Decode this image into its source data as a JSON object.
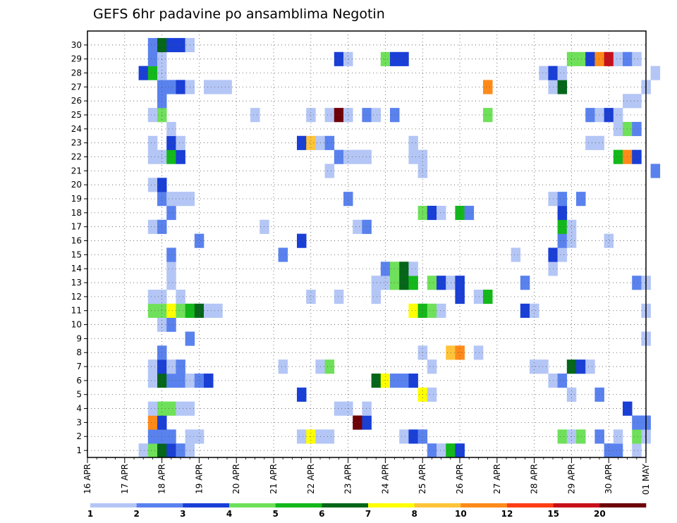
{
  "chart_data": {
    "type": "heatmap",
    "title": "GEFS 6hr padavine po ansamblima Negotin",
    "y_ticks": [
      "1",
      "2",
      "3",
      "4",
      "5",
      "6",
      "7",
      "8",
      "9",
      "10",
      "11",
      "12",
      "13",
      "14",
      "15",
      "16",
      "17",
      "18",
      "19",
      "20",
      "21",
      "22",
      "23",
      "24",
      "25",
      "26",
      "27",
      "28",
      "29",
      "30"
    ],
    "x_ticks": [
      "16 APR",
      "17 APR",
      "18 APR",
      "19 APR",
      "20 APR",
      "21 APR",
      "22 APR",
      "23 APR",
      "24 APR",
      "25 APR",
      "26 APR",
      "27 APR",
      "28 APR",
      "29 APR",
      "30 APR",
      "01 MAY"
    ],
    "x_steps_per_day": 4,
    "grid": true,
    "colorbar": {
      "boundary_labels": [
        "1",
        "2",
        "3",
        "4",
        "5",
        "6",
        "7",
        "8",
        "10",
        "12",
        "15",
        "20"
      ],
      "colors": [
        "#b4c6f5",
        "#5a82ee",
        "#1a3fd6",
        "#6fe05a",
        "#13b81a",
        "#05661a",
        "#ffff00",
        "#ffc43a",
        "#ff8a1a",
        "#ff3e14",
        "#c8101a",
        "#6e0008"
      ]
    },
    "cells": [
      {
        "m": 1,
        "t": 6,
        "c": 1
      },
      {
        "m": 1,
        "t": 7,
        "c": 4
      },
      {
        "m": 1,
        "t": 8,
        "c": 6
      },
      {
        "m": 1,
        "t": 9,
        "c": 3
      },
      {
        "m": 1,
        "t": 10,
        "c": 2
      },
      {
        "m": 1,
        "t": 11,
        "c": 1
      },
      {
        "m": 1,
        "t": 37,
        "c": 2
      },
      {
        "m": 1,
        "t": 38,
        "c": 1
      },
      {
        "m": 1,
        "t": 39,
        "c": 5
      },
      {
        "m": 1,
        "t": 40,
        "c": 3
      },
      {
        "m": 1,
        "t": 56,
        "c": 2
      },
      {
        "m": 1,
        "t": 57,
        "c": 2
      },
      {
        "m": 1,
        "t": 59,
        "c": 1
      },
      {
        "m": 2,
        "t": 7,
        "c": 2
      },
      {
        "m": 2,
        "t": 8,
        "c": 2
      },
      {
        "m": 2,
        "t": 9,
        "c": 2
      },
      {
        "m": 2,
        "t": 11,
        "c": 1
      },
      {
        "m": 2,
        "t": 12,
        "c": 1
      },
      {
        "m": 2,
        "t": 23,
        "c": 1
      },
      {
        "m": 2,
        "t": 24,
        "c": 7
      },
      {
        "m": 2,
        "t": 25,
        "c": 1
      },
      {
        "m": 2,
        "t": 26,
        "c": 1
      },
      {
        "m": 2,
        "t": 34,
        "c": 1
      },
      {
        "m": 2,
        "t": 35,
        "c": 3
      },
      {
        "m": 2,
        "t": 36,
        "c": 2
      },
      {
        "m": 2,
        "t": 51,
        "c": 4
      },
      {
        "m": 2,
        "t": 52,
        "c": 1
      },
      {
        "m": 2,
        "t": 53,
        "c": 4
      },
      {
        "m": 2,
        "t": 55,
        "c": 2
      },
      {
        "m": 2,
        "t": 57,
        "c": 1
      },
      {
        "m": 2,
        "t": 59,
        "c": 4
      },
      {
        "m": 2,
        "t": 60,
        "c": 1
      },
      {
        "m": 3,
        "t": 7,
        "c": 9
      },
      {
        "m": 3,
        "t": 8,
        "c": 3
      },
      {
        "m": 3,
        "t": 29,
        "c": 12
      },
      {
        "m": 3,
        "t": 30,
        "c": 3
      },
      {
        "m": 3,
        "t": 59,
        "c": 2
      },
      {
        "m": 3,
        "t": 60,
        "c": 2
      },
      {
        "m": 4,
        "t": 7,
        "c": 1
      },
      {
        "m": 4,
        "t": 8,
        "c": 4
      },
      {
        "m": 4,
        "t": 9,
        "c": 4
      },
      {
        "m": 4,
        "t": 10,
        "c": 1
      },
      {
        "m": 4,
        "t": 11,
        "c": 1
      },
      {
        "m": 4,
        "t": 27,
        "c": 1
      },
      {
        "m": 4,
        "t": 28,
        "c": 1
      },
      {
        "m": 4,
        "t": 30,
        "c": 1
      },
      {
        "m": 4,
        "t": 58,
        "c": 3
      },
      {
        "m": 5,
        "t": 23,
        "c": 3
      },
      {
        "m": 5,
        "t": 36,
        "c": 7
      },
      {
        "m": 5,
        "t": 37,
        "c": 1
      },
      {
        "m": 5,
        "t": 52,
        "c": 1
      },
      {
        "m": 5,
        "t": 55,
        "c": 2
      },
      {
        "m": 6,
        "t": 7,
        "c": 1
      },
      {
        "m": 6,
        "t": 8,
        "c": 6
      },
      {
        "m": 6,
        "t": 9,
        "c": 2
      },
      {
        "m": 6,
        "t": 10,
        "c": 2
      },
      {
        "m": 6,
        "t": 11,
        "c": 1
      },
      {
        "m": 6,
        "t": 12,
        "c": 2
      },
      {
        "m": 6,
        "t": 13,
        "c": 3
      },
      {
        "m": 6,
        "t": 31,
        "c": 6
      },
      {
        "m": 6,
        "t": 32,
        "c": 7
      },
      {
        "m": 6,
        "t": 33,
        "c": 2
      },
      {
        "m": 6,
        "t": 34,
        "c": 2
      },
      {
        "m": 6,
        "t": 35,
        "c": 3
      },
      {
        "m": 6,
        "t": 50,
        "c": 1
      },
      {
        "m": 6,
        "t": 51,
        "c": 2
      },
      {
        "m": 7,
        "t": 7,
        "c": 1
      },
      {
        "m": 7,
        "t": 8,
        "c": 3
      },
      {
        "m": 7,
        "t": 9,
        "c": 1
      },
      {
        "m": 7,
        "t": 10,
        "c": 2
      },
      {
        "m": 7,
        "t": 21,
        "c": 1
      },
      {
        "m": 7,
        "t": 25,
        "c": 1
      },
      {
        "m": 7,
        "t": 26,
        "c": 4
      },
      {
        "m": 7,
        "t": 37,
        "c": 1
      },
      {
        "m": 7,
        "t": 48,
        "c": 1
      },
      {
        "m": 7,
        "t": 49,
        "c": 1
      },
      {
        "m": 7,
        "t": 52,
        "c": 6
      },
      {
        "m": 7,
        "t": 53,
        "c": 3
      },
      {
        "m": 7,
        "t": 54,
        "c": 1
      },
      {
        "m": 8,
        "t": 8,
        "c": 2
      },
      {
        "m": 8,
        "t": 36,
        "c": 1
      },
      {
        "m": 8,
        "t": 39,
        "c": 8
      },
      {
        "m": 8,
        "t": 40,
        "c": 9
      },
      {
        "m": 8,
        "t": 42,
        "c": 1
      },
      {
        "m": 9,
        "t": 11,
        "c": 2
      },
      {
        "m": 9,
        "t": 60,
        "c": 1
      },
      {
        "m": 10,
        "t": 8,
        "c": 1
      },
      {
        "m": 10,
        "t": 9,
        "c": 2
      },
      {
        "m": 11,
        "t": 7,
        "c": 4
      },
      {
        "m": 11,
        "t": 8,
        "c": 4
      },
      {
        "m": 11,
        "t": 9,
        "c": 7
      },
      {
        "m": 11,
        "t": 10,
        "c": 4
      },
      {
        "m": 11,
        "t": 11,
        "c": 5
      },
      {
        "m": 11,
        "t": 12,
        "c": 6
      },
      {
        "m": 11,
        "t": 13,
        "c": 1
      },
      {
        "m": 11,
        "t": 14,
        "c": 1
      },
      {
        "m": 11,
        "t": 35,
        "c": 7
      },
      {
        "m": 11,
        "t": 36,
        "c": 5
      },
      {
        "m": 11,
        "t": 37,
        "c": 4
      },
      {
        "m": 11,
        "t": 38,
        "c": 1
      },
      {
        "m": 11,
        "t": 47,
        "c": 3
      },
      {
        "m": 11,
        "t": 48,
        "c": 1
      },
      {
        "m": 11,
        "t": 60,
        "c": 1
      },
      {
        "m": 12,
        "t": 7,
        "c": 1
      },
      {
        "m": 12,
        "t": 8,
        "c": 1
      },
      {
        "m": 12,
        "t": 10,
        "c": 1
      },
      {
        "m": 12,
        "t": 24,
        "c": 1
      },
      {
        "m": 12,
        "t": 27,
        "c": 1
      },
      {
        "m": 12,
        "t": 31,
        "c": 1
      },
      {
        "m": 12,
        "t": 40,
        "c": 3
      },
      {
        "m": 12,
        "t": 42,
        "c": 1
      },
      {
        "m": 12,
        "t": 43,
        "c": 5
      },
      {
        "m": 13,
        "t": 9,
        "c": 1
      },
      {
        "m": 13,
        "t": 31,
        "c": 1
      },
      {
        "m": 13,
        "t": 32,
        "c": 1
      },
      {
        "m": 13,
        "t": 33,
        "c": 4
      },
      {
        "m": 13,
        "t": 34,
        "c": 6
      },
      {
        "m": 13,
        "t": 35,
        "c": 5
      },
      {
        "m": 13,
        "t": 37,
        "c": 4
      },
      {
        "m": 13,
        "t": 38,
        "c": 3
      },
      {
        "m": 13,
        "t": 39,
        "c": 1
      },
      {
        "m": 13,
        "t": 40,
        "c": 3
      },
      {
        "m": 13,
        "t": 47,
        "c": 2
      },
      {
        "m": 13,
        "t": 59,
        "c": 2
      },
      {
        "m": 13,
        "t": 60,
        "c": 1
      },
      {
        "m": 14,
        "t": 9,
        "c": 1
      },
      {
        "m": 14,
        "t": 32,
        "c": 2
      },
      {
        "m": 14,
        "t": 33,
        "c": 4
      },
      {
        "m": 14,
        "t": 34,
        "c": 6
      },
      {
        "m": 14,
        "t": 35,
        "c": 1
      },
      {
        "m": 14,
        "t": 50,
        "c": 1
      },
      {
        "m": 15,
        "t": 9,
        "c": 2
      },
      {
        "m": 15,
        "t": 21,
        "c": 2
      },
      {
        "m": 15,
        "t": 46,
        "c": 1
      },
      {
        "m": 15,
        "t": 50,
        "c": 3
      },
      {
        "m": 15,
        "t": 51,
        "c": 1
      },
      {
        "m": 16,
        "t": 12,
        "c": 2
      },
      {
        "m": 16,
        "t": 23,
        "c": 3
      },
      {
        "m": 16,
        "t": 51,
        "c": 2
      },
      {
        "m": 16,
        "t": 52,
        "c": 1
      },
      {
        "m": 16,
        "t": 56,
        "c": 1
      },
      {
        "m": 17,
        "t": 7,
        "c": 1
      },
      {
        "m": 17,
        "t": 8,
        "c": 2
      },
      {
        "m": 17,
        "t": 19,
        "c": 1
      },
      {
        "m": 17,
        "t": 29,
        "c": 1
      },
      {
        "m": 17,
        "t": 30,
        "c": 2
      },
      {
        "m": 17,
        "t": 51,
        "c": 5
      },
      {
        "m": 17,
        "t": 52,
        "c": 1
      },
      {
        "m": 18,
        "t": 9,
        "c": 2
      },
      {
        "m": 18,
        "t": 36,
        "c": 4
      },
      {
        "m": 18,
        "t": 37,
        "c": 3
      },
      {
        "m": 18,
        "t": 38,
        "c": 1
      },
      {
        "m": 18,
        "t": 40,
        "c": 5
      },
      {
        "m": 18,
        "t": 41,
        "c": 2
      },
      {
        "m": 18,
        "t": 51,
        "c": 3
      },
      {
        "m": 19,
        "t": 8,
        "c": 2
      },
      {
        "m": 19,
        "t": 9,
        "c": 1
      },
      {
        "m": 19,
        "t": 10,
        "c": 1
      },
      {
        "m": 19,
        "t": 11,
        "c": 1
      },
      {
        "m": 19,
        "t": 28,
        "c": 2
      },
      {
        "m": 19,
        "t": 50,
        "c": 1
      },
      {
        "m": 19,
        "t": 51,
        "c": 2
      },
      {
        "m": 19,
        "t": 53,
        "c": 2
      },
      {
        "m": 20,
        "t": 7,
        "c": 1
      },
      {
        "m": 20,
        "t": 8,
        "c": 3
      },
      {
        "m": 21,
        "t": 26,
        "c": 1
      },
      {
        "m": 21,
        "t": 36,
        "c": 1
      },
      {
        "m": 21,
        "t": 61,
        "c": 2
      },
      {
        "m": 22,
        "t": 7,
        "c": 1
      },
      {
        "m": 22,
        "t": 8,
        "c": 1
      },
      {
        "m": 22,
        "t": 9,
        "c": 5
      },
      {
        "m": 22,
        "t": 10,
        "c": 3
      },
      {
        "m": 22,
        "t": 27,
        "c": 2
      },
      {
        "m": 22,
        "t": 28,
        "c": 1
      },
      {
        "m": 22,
        "t": 29,
        "c": 1
      },
      {
        "m": 22,
        "t": 30,
        "c": 1
      },
      {
        "m": 22,
        "t": 35,
        "c": 1
      },
      {
        "m": 22,
        "t": 36,
        "c": 1
      },
      {
        "m": 22,
        "t": 57,
        "c": 5
      },
      {
        "m": 22,
        "t": 58,
        "c": 9
      },
      {
        "m": 22,
        "t": 59,
        "c": 3
      },
      {
        "m": 23,
        "t": 7,
        "c": 1
      },
      {
        "m": 23,
        "t": 9,
        "c": 3
      },
      {
        "m": 23,
        "t": 10,
        "c": 1
      },
      {
        "m": 23,
        "t": 23,
        "c": 3
      },
      {
        "m": 23,
        "t": 24,
        "c": 8
      },
      {
        "m": 23,
        "t": 25,
        "c": 1
      },
      {
        "m": 23,
        "t": 26,
        "c": 2
      },
      {
        "m": 23,
        "t": 35,
        "c": 1
      },
      {
        "m": 23,
        "t": 54,
        "c": 1
      },
      {
        "m": 23,
        "t": 55,
        "c": 1
      },
      {
        "m": 24,
        "t": 9,
        "c": 1
      },
      {
        "m": 24,
        "t": 57,
        "c": 1
      },
      {
        "m": 24,
        "t": 58,
        "c": 4
      },
      {
        "m": 24,
        "t": 59,
        "c": 2
      },
      {
        "m": 25,
        "t": 7,
        "c": 1
      },
      {
        "m": 25,
        "t": 8,
        "c": 4
      },
      {
        "m": 25,
        "t": 18,
        "c": 1
      },
      {
        "m": 25,
        "t": 24,
        "c": 1
      },
      {
        "m": 25,
        "t": 26,
        "c": 1
      },
      {
        "m": 25,
        "t": 27,
        "c": 12
      },
      {
        "m": 25,
        "t": 28,
        "c": 1
      },
      {
        "m": 25,
        "t": 30,
        "c": 2
      },
      {
        "m": 25,
        "t": 31,
        "c": 1
      },
      {
        "m": 25,
        "t": 33,
        "c": 2
      },
      {
        "m": 25,
        "t": 43,
        "c": 4
      },
      {
        "m": 25,
        "t": 54,
        "c": 2
      },
      {
        "m": 25,
        "t": 55,
        "c": 1
      },
      {
        "m": 25,
        "t": 56,
        "c": 3
      },
      {
        "m": 25,
        "t": 57,
        "c": 1
      },
      {
        "m": 26,
        "t": 8,
        "c": 2
      },
      {
        "m": 26,
        "t": 58,
        "c": 1
      },
      {
        "m": 26,
        "t": 59,
        "c": 1
      },
      {
        "m": 27,
        "t": 8,
        "c": 2
      },
      {
        "m": 27,
        "t": 9,
        "c": 2
      },
      {
        "m": 27,
        "t": 10,
        "c": 3
      },
      {
        "m": 27,
        "t": 11,
        "c": 1
      },
      {
        "m": 27,
        "t": 13,
        "c": 1
      },
      {
        "m": 27,
        "t": 14,
        "c": 1
      },
      {
        "m": 27,
        "t": 15,
        "c": 1
      },
      {
        "m": 27,
        "t": 43,
        "c": 9
      },
      {
        "m": 27,
        "t": 50,
        "c": 1
      },
      {
        "m": 27,
        "t": 51,
        "c": 6
      },
      {
        "m": 27,
        "t": 60,
        "c": 1
      },
      {
        "m": 28,
        "t": 6,
        "c": 3
      },
      {
        "m": 28,
        "t": 7,
        "c": 5
      },
      {
        "m": 28,
        "t": 8,
        "c": 1
      },
      {
        "m": 28,
        "t": 49,
        "c": 1
      },
      {
        "m": 28,
        "t": 50,
        "c": 3
      },
      {
        "m": 28,
        "t": 51,
        "c": 1
      },
      {
        "m": 28,
        "t": 61,
        "c": 1
      },
      {
        "m": 29,
        "t": 7,
        "c": 2
      },
      {
        "m": 29,
        "t": 8,
        "c": 1
      },
      {
        "m": 29,
        "t": 27,
        "c": 3
      },
      {
        "m": 29,
        "t": 28,
        "c": 1
      },
      {
        "m": 29,
        "t": 32,
        "c": 4
      },
      {
        "m": 29,
        "t": 33,
        "c": 3
      },
      {
        "m": 29,
        "t": 34,
        "c": 3
      },
      {
        "m": 29,
        "t": 52,
        "c": 4
      },
      {
        "m": 29,
        "t": 53,
        "c": 4
      },
      {
        "m": 29,
        "t": 54,
        "c": 3
      },
      {
        "m": 29,
        "t": 55,
        "c": 9
      },
      {
        "m": 29,
        "t": 56,
        "c": 11
      },
      {
        "m": 29,
        "t": 57,
        "c": 1
      },
      {
        "m": 29,
        "t": 58,
        "c": 2
      },
      {
        "m": 29,
        "t": 59,
        "c": 1
      },
      {
        "m": 30,
        "t": 7,
        "c": 2
      },
      {
        "m": 30,
        "t": 8,
        "c": 6
      },
      {
        "m": 30,
        "t": 9,
        "c": 3
      },
      {
        "m": 30,
        "t": 10,
        "c": 3
      },
      {
        "m": 30,
        "t": 11,
        "c": 1
      }
    ]
  }
}
